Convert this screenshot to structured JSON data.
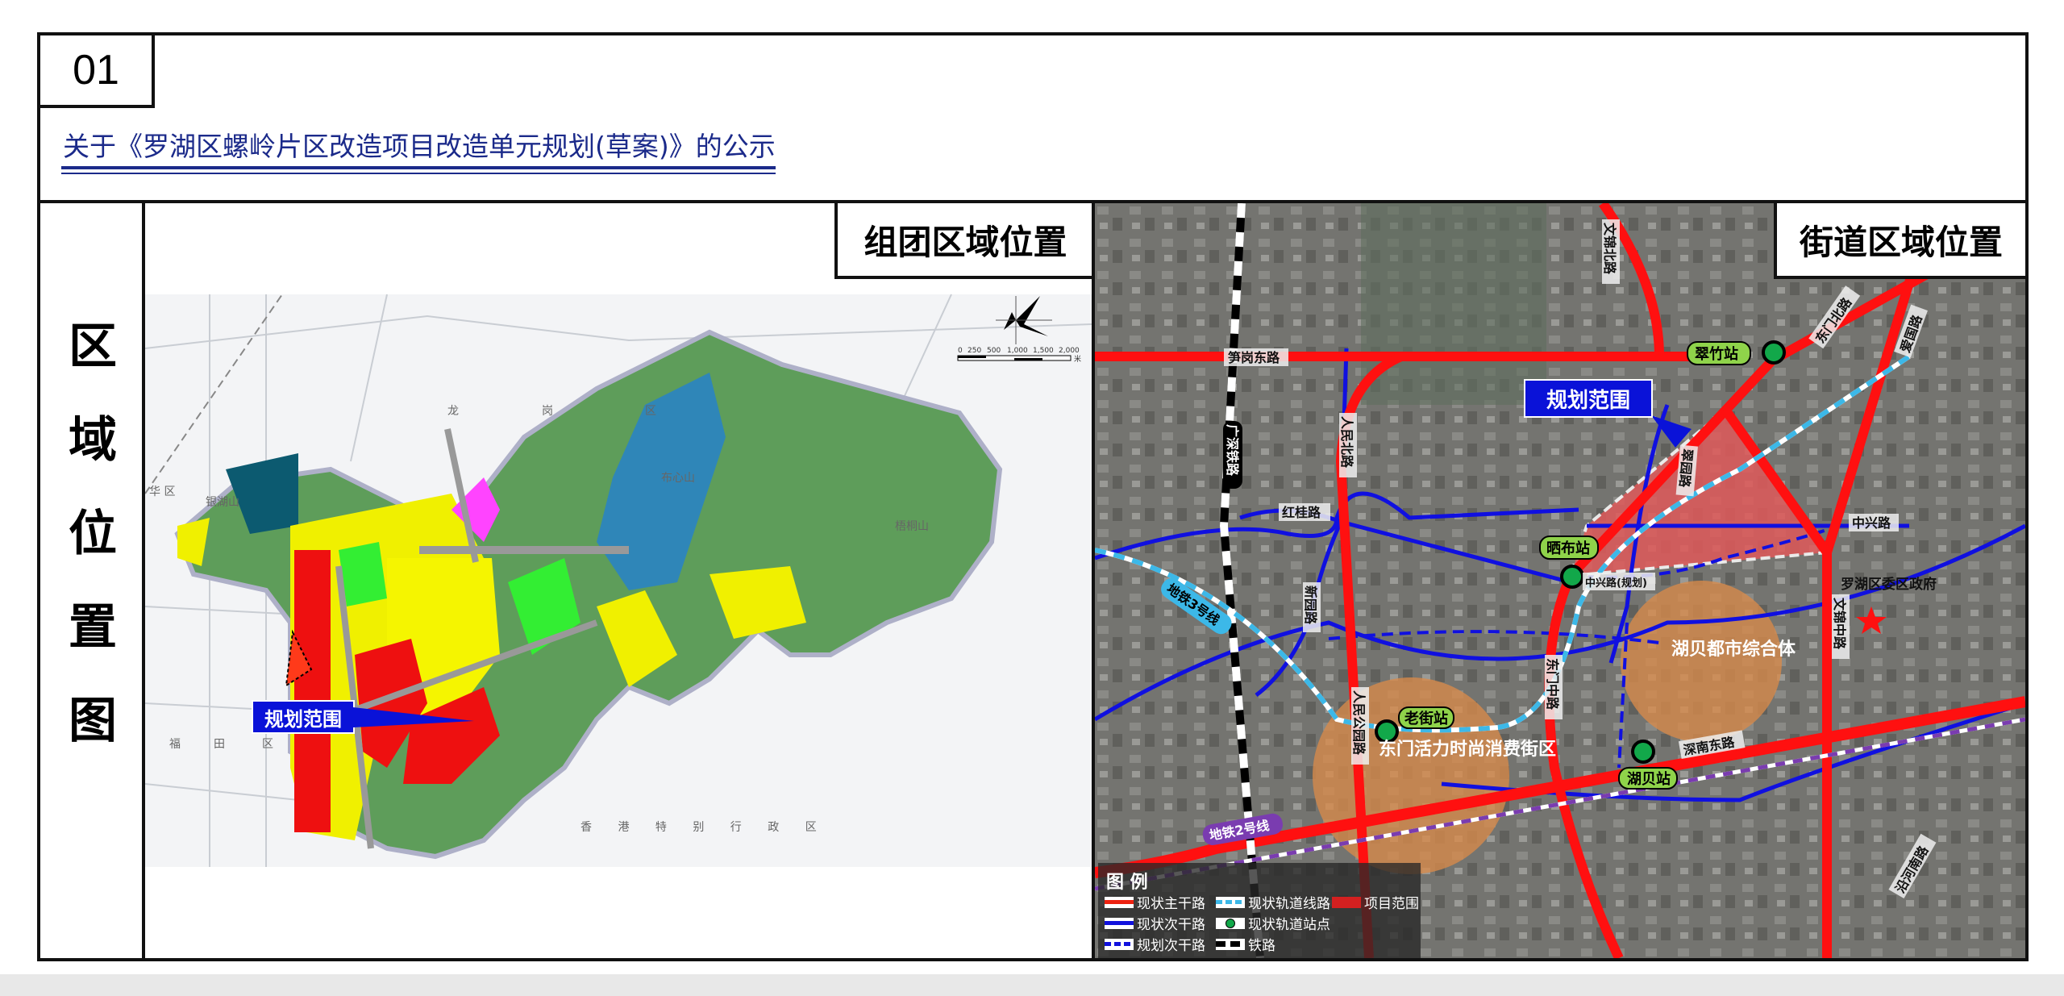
{
  "header": {
    "number": "01",
    "title": "关于《罗湖区螺岭片区改造项目改造单元规划(草案)》的公示"
  },
  "side_title": [
    "区",
    "域",
    "位",
    "置",
    "图"
  ],
  "left_map": {
    "tag": "组团区域位置",
    "callout": "规划范围",
    "place_labels": [
      "龙",
      "岗",
      "区",
      "华 区",
      "银湖山",
      "梧桐山",
      "布心山",
      "福",
      "田",
      "区",
      "香 港 特 别 行 政 区"
    ],
    "scale": {
      "ticks": [
        "0",
        "250",
        "500",
        "1,000",
        "1,500",
        "2,000"
      ],
      "unit": "米"
    }
  },
  "right_map": {
    "tag": "街道区域位置",
    "callout": "规划范围",
    "roads": [
      "笋岗东路",
      "文锦北路",
      "东门北路",
      "爱国路",
      "广深铁路",
      "人民北路",
      "红桂路",
      "新园路",
      "翠园路",
      "中兴路",
      "中兴路(规划)",
      "文锦中路",
      "东门中路",
      "人民公园路",
      "深南东路",
      "沿河南路"
    ],
    "metro_lines": [
      "地铁3号线",
      "地铁2号线"
    ],
    "stations": [
      "翠竹站",
      "晒布站",
      "老街站",
      "湖贝站"
    ],
    "districts": [
      "东门活力时尚消费街区",
      "湖贝都市综合体"
    ],
    "landmark": "罗湖区委区政府",
    "colors": {
      "main_road": "#ff1010",
      "secondary_road": "#1010e0",
      "metro": "#3cb8e8",
      "project": "#e05a5a",
      "district": "#d98a4a",
      "station": "#12a84a"
    }
  },
  "legend": {
    "title": "图 例",
    "items": [
      {
        "label": "现状主干路",
        "icon": "red-double-line"
      },
      {
        "label": "现状次干路",
        "icon": "blue-double-line"
      },
      {
        "label": "规划次干路",
        "icon": "blue-dashed-line"
      },
      {
        "label": "现状轨道线路",
        "icon": "cyan-dashed-line"
      },
      {
        "label": "现状轨道站点",
        "icon": "green-dot"
      },
      {
        "label": "铁路",
        "icon": "black-white-dashed"
      },
      {
        "label": "项目范围",
        "icon": "red-fill"
      }
    ]
  }
}
